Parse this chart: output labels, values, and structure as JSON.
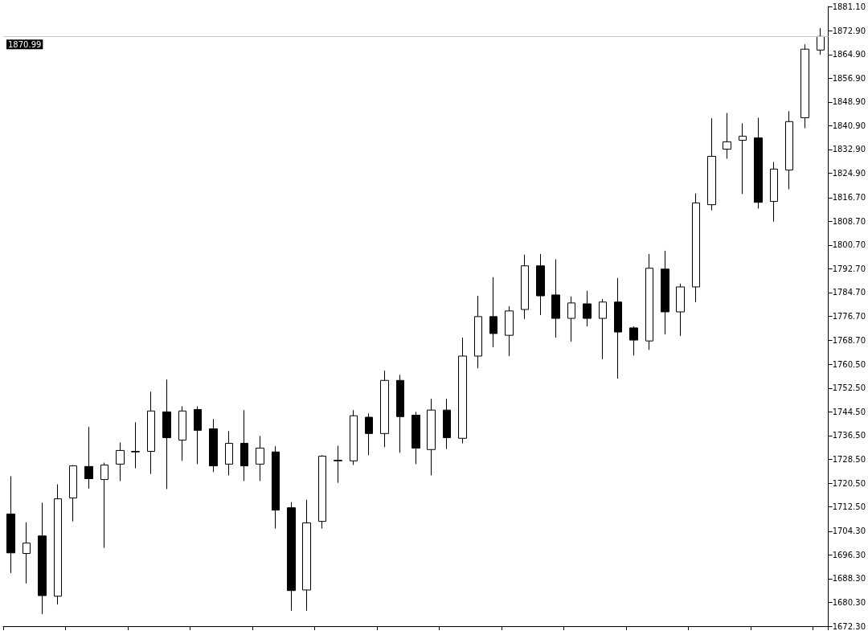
{
  "chart_data": {
    "type": "candlestick",
    "tick_labels": "y",
    "grid": false,
    "categories": [
      null,
      null,
      null,
      null,
      null,
      null,
      null,
      null,
      null,
      null,
      null,
      null,
      null,
      null,
      null,
      null,
      null,
      null,
      null,
      null,
      null,
      null,
      null,
      null,
      null,
      null,
      null,
      null,
      null,
      null,
      null,
      null,
      null,
      null,
      null,
      null,
      null,
      null,
      null,
      null,
      null,
      null,
      null,
      null,
      null,
      null,
      null,
      null,
      null,
      null,
      null,
      null,
      null
    ],
    "color": "#000000",
    "ohlc": [
      [
        1710.1,
        1722.8,
        1690.2,
        1697.0
      ],
      [
        1696.8,
        1707.3,
        1686.7,
        1700.3
      ],
      [
        1702.7,
        1713.9,
        1676.4,
        1682.6
      ],
      [
        1682.4,
        1720.1,
        1679.6,
        1715.2
      ],
      [
        1715.5,
        1726.6,
        1707.6,
        1726.3
      ],
      [
        1726.1,
        1739.4,
        1718.7,
        1722.0
      ],
      [
        1721.7,
        1727.4,
        1698.7,
        1726.6
      ],
      [
        1726.9,
        1734.2,
        1721.2,
        1731.5
      ],
      [
        1731.0,
        1741.0,
        1725.5,
        1731.2
      ],
      [
        1731.2,
        1751.3,
        1723.6,
        1744.8
      ],
      [
        1744.5,
        1755.4,
        1718.5,
        1735.8
      ],
      [
        1735.0,
        1746.4,
        1728.0,
        1744.8
      ],
      [
        1745.3,
        1746.4,
        1726.9,
        1738.3
      ],
      [
        1738.8,
        1742.1,
        1724.2,
        1726.3
      ],
      [
        1726.9,
        1738.0,
        1723.1,
        1733.9
      ],
      [
        1733.9,
        1745.1,
        1721.2,
        1726.3
      ],
      [
        1726.9,
        1736.4,
        1721.2,
        1732.3
      ],
      [
        1731.0,
        1732.9,
        1705.2,
        1711.4
      ],
      [
        1712.2,
        1714.1,
        1677.5,
        1684.3
      ],
      [
        1684.5,
        1714.9,
        1677.5,
        1707.1
      ],
      [
        1707.6,
        1729.9,
        1705.2,
        1729.6
      ],
      [
        1728.0,
        1733.1,
        1720.6,
        1728.2
      ],
      [
        1728.0,
        1745.1,
        1726.6,
        1743.2
      ],
      [
        1742.7,
        1744.0,
        1729.9,
        1737.2
      ],
      [
        1737.2,
        1758.4,
        1732.6,
        1755.1
      ],
      [
        1755.1,
        1757.0,
        1730.7,
        1742.9
      ],
      [
        1743.4,
        1744.5,
        1726.9,
        1732.3
      ],
      [
        1731.8,
        1748.9,
        1723.1,
        1745.1
      ],
      [
        1745.1,
        1748.9,
        1732.0,
        1735.8
      ],
      [
        1735.6,
        1769.5,
        1733.9,
        1763.3
      ],
      [
        1763.3,
        1783.6,
        1759.2,
        1776.6
      ],
      [
        1776.6,
        1789.9,
        1766.3,
        1770.9
      ],
      [
        1770.3,
        1780.1,
        1763.3,
        1778.5
      ],
      [
        1779.0,
        1797.5,
        1775.8,
        1793.7
      ],
      [
        1793.7,
        1797.7,
        1777.1,
        1783.6
      ],
      [
        1783.9,
        1795.9,
        1769.5,
        1776.0
      ],
      [
        1776.0,
        1783.4,
        1768.2,
        1781.2
      ],
      [
        1780.9,
        1785.3,
        1773.3,
        1776.0
      ],
      [
        1776.0,
        1782.5,
        1762.2,
        1781.5
      ],
      [
        1781.5,
        1789.6,
        1755.7,
        1771.4
      ],
      [
        1772.8,
        1773.3,
        1763.5,
        1768.7
      ],
      [
        1768.4,
        1797.7,
        1765.4,
        1792.9
      ],
      [
        1792.6,
        1798.8,
        1770.6,
        1778.2
      ],
      [
        1778.2,
        1787.7,
        1770.1,
        1786.6
      ],
      [
        1786.6,
        1818.1,
        1781.5,
        1814.9
      ],
      [
        1814.3,
        1843.4,
        1812.4,
        1830.6
      ],
      [
        1833.0,
        1845.2,
        1829.8,
        1835.5
      ],
      [
        1836.0,
        1841.7,
        1817.9,
        1837.4
      ],
      [
        1836.8,
        1843.6,
        1813.0,
        1815.1
      ],
      [
        1815.4,
        1828.7,
        1808.6,
        1826.3
      ],
      [
        1826.0,
        1845.8,
        1819.5,
        1842.3
      ],
      [
        1843.6,
        1868.3,
        1840.1,
        1866.7
      ],
      [
        1866.4,
        1873.8,
        1864.8,
        1870.99
      ]
    ],
    "ylim": [
      1672.3,
      1881.1
    ],
    "yticks": [
      {
        "value": 1672.3,
        "label": "1672.30"
      },
      {
        "value": 1680.3,
        "label": "1680.30"
      },
      {
        "value": 1688.3,
        "label": "1688.30"
      },
      {
        "value": 1696.3,
        "label": "1696.30"
      },
      {
        "value": 1704.3,
        "label": "1704.30"
      },
      {
        "value": 1712.5,
        "label": "1712.50"
      },
      {
        "value": 1720.5,
        "label": "1720.50"
      },
      {
        "value": 1728.5,
        "label": "1728.50"
      },
      {
        "value": 1736.5,
        "label": "1736.50"
      },
      {
        "value": 1744.5,
        "label": "1744.50"
      },
      {
        "value": 1752.5,
        "label": "1752.50"
      },
      {
        "value": 1760.5,
        "label": "1760.50"
      },
      {
        "value": 1768.7,
        "label": "1768.70"
      },
      {
        "value": 1776.7,
        "label": "1776.70"
      },
      {
        "value": 1784.7,
        "label": "1784.70"
      },
      {
        "value": 1792.7,
        "label": "1792.70"
      },
      {
        "value": 1800.7,
        "label": "1800.70"
      },
      {
        "value": 1808.7,
        "label": "1808.70"
      },
      {
        "value": 1816.7,
        "label": "1816.70"
      },
      {
        "value": 1824.9,
        "label": "1824.90"
      },
      {
        "value": 1832.9,
        "label": "1832.90"
      },
      {
        "value": 1840.9,
        "label": "1840.90"
      },
      {
        "value": 1848.9,
        "label": "1848.90"
      },
      {
        "value": 1856.9,
        "label": "1856.90"
      },
      {
        "value": 1864.9,
        "label": "1864.90"
      },
      {
        "value": 1872.9,
        "label": "1872.90"
      },
      {
        "value": 1881.1,
        "label": "1881.10"
      }
    ],
    "ref_lines": [
      {
        "axis": "y",
        "value": 1870.99,
        "label": "1870.99",
        "color": "#c8c8c8"
      }
    ]
  }
}
